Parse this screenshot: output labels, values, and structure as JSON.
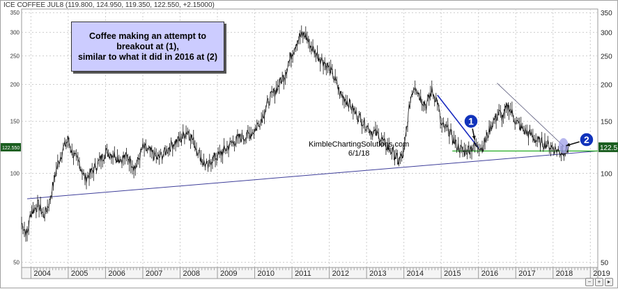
{
  "header": {
    "text": "ICE COFFEE JUL8 (119.800, 124.950, 119.350, 122.550, +2.15000)"
  },
  "note": {
    "lines": [
      "Coffee making an attempt to",
      "breakout at (1),",
      "similar to what it did in 2016 at (2)"
    ]
  },
  "source": {
    "site": "KimbleChartingSolutions.com",
    "date": "6/1/18"
  },
  "markers": [
    {
      "label": "1"
    },
    {
      "label": "2"
    }
  ],
  "price_tag": {
    "left": "122.550",
    "right": "122.5"
  },
  "colors": {
    "marker_fill": "#1133bb",
    "downtrend_line": "#1a2bbf",
    "support_line": "#22aa22",
    "uptrend_line": "#3d3d99",
    "highlight": "#9f9fe8",
    "price": "#111111"
  },
  "nav": [
    "zoom-out-icon",
    "zoom-in-icon",
    "scroll-right-icon"
  ],
  "chart_data": {
    "type": "line",
    "scale": "log",
    "y_ticks": [
      50,
      100,
      150,
      200,
      250,
      300,
      350
    ],
    "x_ticks": [
      "2004",
      "2005",
      "2006",
      "2007",
      "2008",
      "2009",
      "2010",
      "2011",
      "2012",
      "2013",
      "2014",
      "2015",
      "2016",
      "2017",
      "2018",
      "2019"
    ],
    "x_range": [
      2003.75,
      2019.2
    ],
    "ylim": [
      48,
      360
    ],
    "series": [
      {
        "x": [
          2003.75,
          2003.9,
          2004.0,
          2004.2,
          2004.35,
          2004.5,
          2004.7,
          2004.85,
          2005.0,
          2005.1,
          2005.2,
          2005.3,
          2005.45,
          2005.6,
          2005.8,
          2006.0,
          2006.2,
          2006.4,
          2006.6,
          2006.8,
          2007.0,
          2007.2,
          2007.4,
          2007.6,
          2007.8,
          2008.0,
          2008.2,
          2008.4,
          2008.6,
          2008.75,
          2008.85,
          2009.0,
          2009.2,
          2009.4,
          2009.6,
          2009.8,
          2010.0,
          2010.2,
          2010.4,
          2010.6,
          2010.8,
          2011.0,
          2011.1,
          2011.2,
          2011.35,
          2011.5,
          2011.7,
          2011.9,
          2012.1,
          2012.3,
          2012.5,
          2012.7,
          2012.9,
          2013.1,
          2013.3,
          2013.5,
          2013.7,
          2013.85,
          2014.0,
          2014.1,
          2014.2,
          2014.3,
          2014.45,
          2014.6,
          2014.75,
          2014.9,
          2015.0,
          2015.2,
          2015.4,
          2015.6,
          2015.8,
          2016.0,
          2016.1,
          2016.25,
          2016.4,
          2016.55,
          2016.65,
          2016.8,
          2017.0,
          2017.2,
          2017.4,
          2017.6,
          2017.8,
          2018.0,
          2018.2,
          2018.35,
          2018.42
        ],
        "y": [
          68,
          62,
          74,
          78,
          72,
          80,
          105,
          120,
          130,
          118,
          112,
          108,
          96,
          100,
          108,
          118,
          116,
          112,
          114,
          104,
          122,
          118,
          112,
          118,
          126,
          130,
          140,
          125,
          110,
          105,
          112,
          114,
          120,
          127,
          132,
          134,
          140,
          155,
          178,
          195,
          215,
          255,
          275,
          290,
          295,
          270,
          250,
          235,
          215,
          185,
          175,
          160,
          150,
          140,
          135,
          125,
          118,
          110,
          116,
          150,
          185,
          200,
          180,
          170,
          190,
          175,
          145,
          140,
          125,
          118,
          122,
          125,
          122,
          135,
          150,
          160,
          155,
          170,
          150,
          140,
          135,
          128,
          126,
          122,
          118,
          120,
          122.55
        ],
        "name": ""
      }
    ],
    "annotations": {
      "uptrend_line": {
        "x": [
          2003.9,
          2019.2
        ],
        "y": [
          82,
          119
        ]
      },
      "downtrend_line": {
        "x": [
          2014.9,
          2016.0
        ],
        "y": [
          184,
          122
        ]
      },
      "support_line": {
        "x": [
          2015.3,
          2019.2
        ],
        "y": [
          119,
          119
        ]
      },
      "resistance_line": {
        "x": [
          2016.5,
          2018.3
        ],
        "y": [
          202,
          123
        ]
      },
      "marker_1": {
        "x": 2015.8,
        "y": 150,
        "arrow_to_x": 2015.9,
        "arrow_to_y": 130
      },
      "marker_2": {
        "x": 2018.9,
        "y": 130,
        "arrow_to_x": 2018.35,
        "arrow_to_y": 124
      }
    }
  }
}
